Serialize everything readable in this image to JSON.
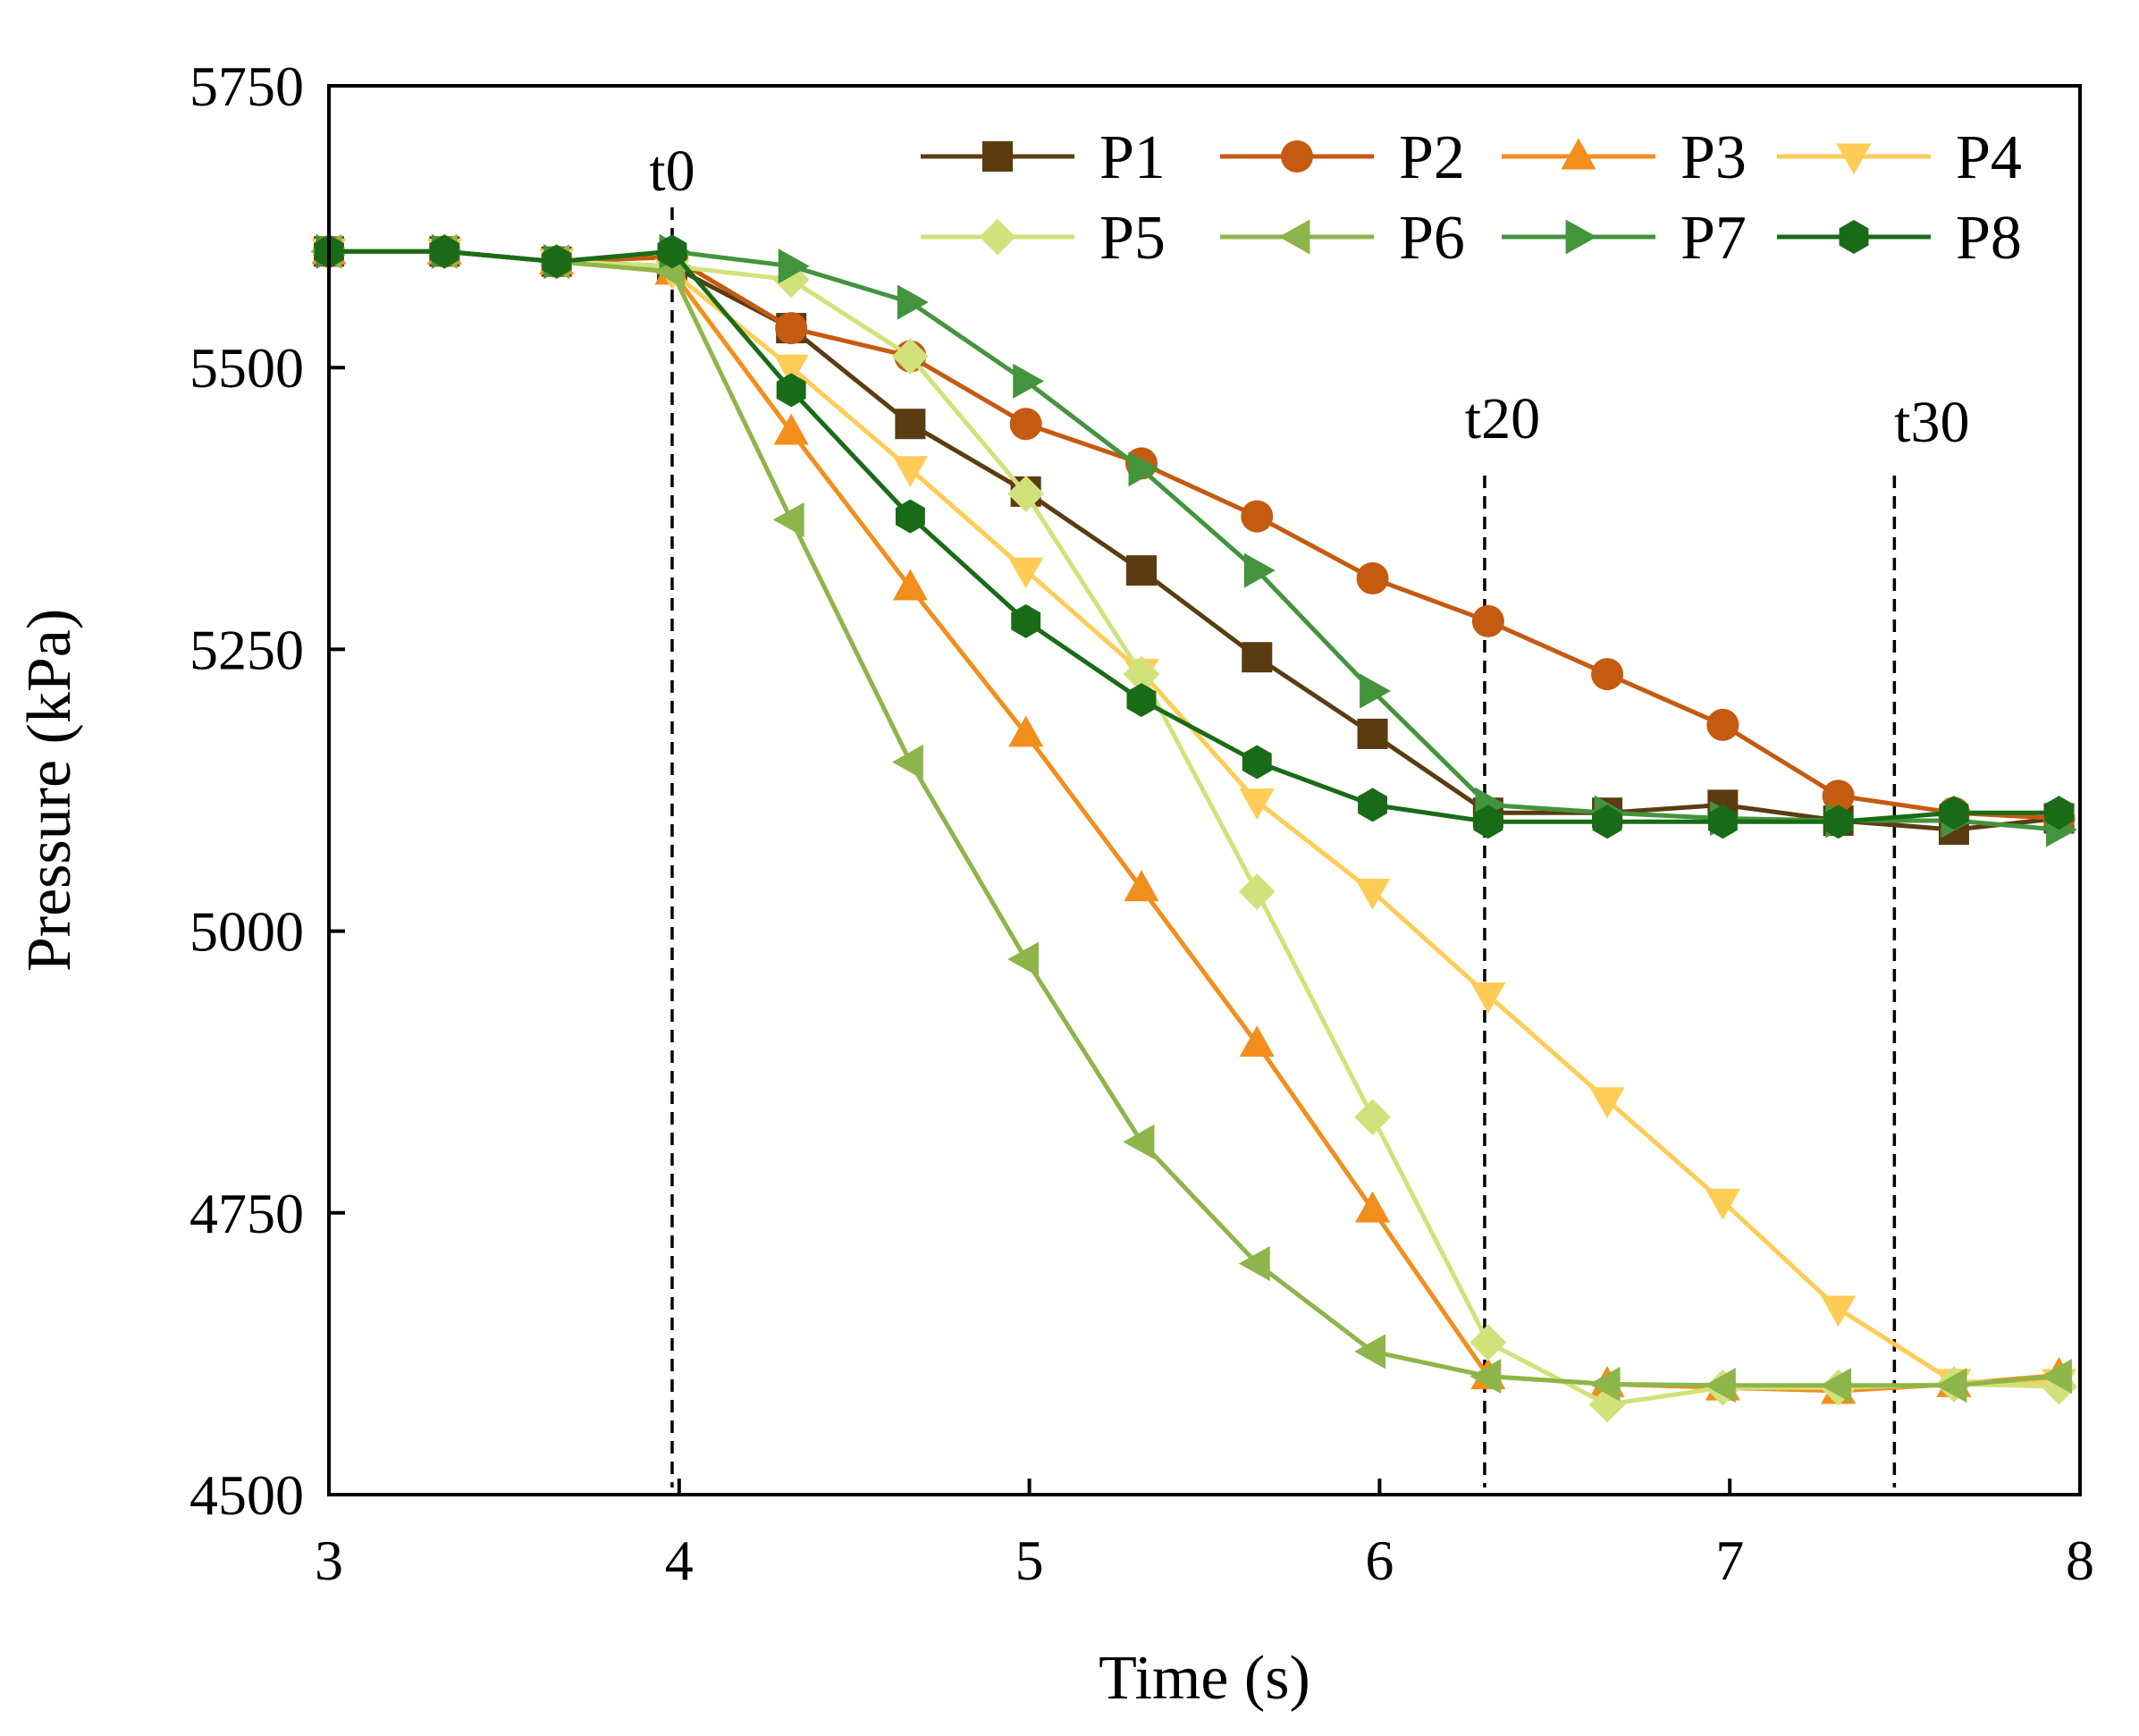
{
  "chart_data": {
    "type": "line",
    "xlabel": "Time (s)",
    "ylabel": "Pressure (kPa)",
    "xlim": [
      3,
      8
    ],
    "ylim": [
      4500,
      5750
    ],
    "x_ticks": [
      3,
      4,
      5,
      6,
      7,
      8
    ],
    "y_ticks": [
      4500,
      4750,
      5000,
      5250,
      5500,
      5750
    ],
    "grid": false,
    "legend_position": "top-right",
    "x": [
      3.0,
      3.33,
      3.65,
      3.98,
      4.32,
      4.66,
      4.99,
      5.32,
      5.65,
      5.98,
      6.31,
      6.65,
      6.98,
      7.31,
      7.64,
      7.94
    ],
    "vlines": [
      {
        "label": "t0",
        "x": 3.98
      },
      {
        "label": "t20",
        "x": 6.3
      },
      {
        "label": "t30",
        "x": 7.47
      }
    ],
    "series": [
      {
        "name": "P1",
        "color": "#5b3c11",
        "marker": "square",
        "values": [
          5603,
          5603,
          5594,
          5590,
          5535,
          5450,
          5390,
          5320,
          5243,
          5175,
          5105,
          5105,
          5112,
          5098,
          5090,
          5100
        ]
      },
      {
        "name": "P2",
        "color": "#c55a11",
        "marker": "circle",
        "values": [
          5603,
          5603,
          5594,
          5598,
          5535,
          5510,
          5450,
          5415,
          5368,
          5313,
          5275,
          5228,
          5183,
          5120,
          5105,
          5100
        ]
      },
      {
        "name": "P3",
        "color": "#f28e1c",
        "marker": "triangle-up",
        "values": [
          5603,
          5603,
          5594,
          5585,
          5443,
          5305,
          5175,
          5038,
          4900,
          4753,
          4605,
          4598,
          4595,
          4592,
          4598,
          4606
        ]
      },
      {
        "name": "P4",
        "color": "#ffcc55",
        "marker": "triangle-down",
        "values": [
          5603,
          5603,
          5594,
          5585,
          5500,
          5410,
          5320,
          5230,
          5115,
          5035,
          4943,
          4850,
          4760,
          4665,
          4600,
          4600
        ]
      },
      {
        "name": "P5",
        "color": "#d2e27a",
        "marker": "diamond",
        "values": [
          5603,
          5603,
          5594,
          5590,
          5578,
          5510,
          5388,
          5228,
          5035,
          4835,
          4635,
          4580,
          4595,
          4595,
          4598,
          4596
        ]
      },
      {
        "name": "P6",
        "color": "#8db54a",
        "marker": "triangle-left",
        "values": [
          5603,
          5603,
          5594,
          5585,
          5365,
          5150,
          4975,
          4813,
          4705,
          4627,
          4605,
          4598,
          4597,
          4597,
          4597,
          4605
        ]
      },
      {
        "name": "P7",
        "color": "#43943c",
        "marker": "triangle-right",
        "values": [
          5603,
          5603,
          5594,
          5603,
          5590,
          5558,
          5488,
          5410,
          5320,
          5213,
          5112,
          5105,
          5100,
          5098,
          5098,
          5090
        ]
      },
      {
        "name": "P8",
        "color": "#1a6b17",
        "marker": "hexagon",
        "values": [
          5603,
          5603,
          5594,
          5603,
          5480,
          5368,
          5275,
          5205,
          5150,
          5112,
          5097,
          5097,
          5097,
          5097,
          5105,
          5105
        ]
      }
    ]
  }
}
